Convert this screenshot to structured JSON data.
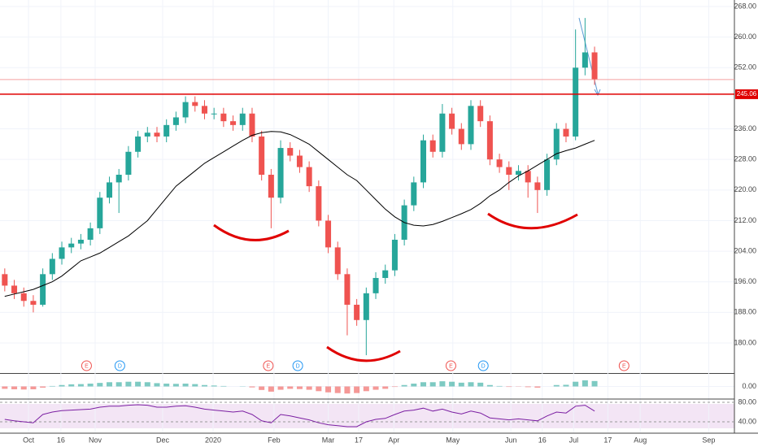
{
  "chart_data": [
    {
      "type": "candlestick",
      "xlim": [
        -0.5,
        76.7
      ],
      "ylim": [
        172.35,
        269.7
      ],
      "yticks": [
        {
          "value": 268,
          "label": "268.00"
        },
        {
          "value": 260,
          "label": "260.00"
        },
        {
          "value": 252,
          "label": "252.00"
        },
        {
          "value": 236,
          "label": "236.00"
        },
        {
          "value": 228,
          "label": "228.00"
        },
        {
          "value": 220,
          "label": "220.00"
        },
        {
          "value": 212,
          "label": "212.00"
        },
        {
          "value": 204,
          "label": "204.00"
        },
        {
          "value": 196,
          "label": "196.00"
        },
        {
          "value": 188,
          "label": "188.00"
        },
        {
          "value": 180,
          "label": "180.00"
        }
      ],
      "xticks": [
        {
          "value": 2.5,
          "label": "Oct"
        },
        {
          "value": 5.9,
          "label": "16"
        },
        {
          "value": 9.5,
          "label": "Nov"
        },
        {
          "value": 16.6,
          "label": "Dec"
        },
        {
          "value": 21.9,
          "label": "2020"
        },
        {
          "value": 28.3,
          "label": "Feb"
        },
        {
          "value": 34.0,
          "label": "Mar"
        },
        {
          "value": 37.2,
          "label": "17"
        },
        {
          "value": 40.9,
          "label": "Apr"
        },
        {
          "value": 47.1,
          "label": "May"
        },
        {
          "value": 53.2,
          "label": "Jun"
        },
        {
          "value": 56.5,
          "label": "16"
        },
        {
          "value": 59.8,
          "label": "Jul"
        },
        {
          "value": 63.4,
          "label": "17"
        },
        {
          "value": 66.8,
          "label": "Aug"
        },
        {
          "value": 74.0,
          "label": "Sep"
        }
      ],
      "grid": true,
      "up_color": "#26a69a",
      "down_color": "#ef5350",
      "ohlc": [
        [
          198,
          199.5,
          193.5,
          195
        ],
        [
          195,
          196.5,
          191.5,
          193
        ],
        [
          193,
          194.5,
          189.5,
          191
        ],
        [
          191,
          192.5,
          188,
          190
        ],
        [
          190,
          199.5,
          189.5,
          198
        ],
        [
          198,
          203.5,
          196.5,
          202
        ],
        [
          202,
          206.5,
          200.5,
          205
        ],
        [
          205,
          207.5,
          203.5,
          206
        ],
        [
          206,
          208.5,
          204.5,
          207
        ],
        [
          207,
          211.5,
          205.5,
          210
        ],
        [
          210,
          219.5,
          208.5,
          218
        ],
        [
          218,
          223.5,
          216.5,
          222
        ],
        [
          222,
          225.5,
          214,
          224
        ],
        [
          224,
          231.5,
          222.5,
          230
        ],
        [
          230,
          235.5,
          228.5,
          234
        ],
        [
          234,
          236.5,
          232.5,
          235
        ],
        [
          235,
          236.5,
          232.5,
          234
        ],
        [
          234,
          238.5,
          232.5,
          237
        ],
        [
          237,
          240.5,
          235.5,
          239
        ],
        [
          239,
          244.5,
          237.5,
          243
        ],
        [
          243,
          244.5,
          240.5,
          242
        ],
        [
          242,
          243.5,
          238.5,
          240
        ],
        [
          240,
          241.5,
          238.5,
          240
        ],
        [
          240,
          241.5,
          236.5,
          238
        ],
        [
          238,
          239.5,
          235.5,
          237
        ],
        [
          237,
          241.5,
          235.5,
          240
        ],
        [
          240,
          241.5,
          232.5,
          234
        ],
        [
          234,
          235.5,
          222.5,
          224
        ],
        [
          224,
          225.5,
          210,
          218
        ],
        [
          218,
          233,
          216.5,
          231
        ],
        [
          231,
          232.5,
          227.5,
          229
        ],
        [
          229,
          230.5,
          224.5,
          226
        ],
        [
          226,
          227.5,
          219.5,
          221
        ],
        [
          221,
          222.5,
          210.5,
          212
        ],
        [
          212,
          213.5,
          203.5,
          205
        ],
        [
          205,
          206.5,
          196.5,
          198
        ],
        [
          198,
          199.5,
          182,
          190
        ],
        [
          190,
          191.5,
          184.5,
          186
        ],
        [
          186,
          194.5,
          176.8,
          193
        ],
        [
          193,
          198.5,
          191.5,
          197
        ],
        [
          197,
          200.5,
          195.5,
          199
        ],
        [
          199,
          208.5,
          197.5,
          207
        ],
        [
          207,
          217.5,
          205.5,
          216
        ],
        [
          216,
          223.5,
          214.5,
          222
        ],
        [
          222,
          234.5,
          220.5,
          233
        ],
        [
          233,
          234.5,
          228.5,
          230
        ],
        [
          230,
          242.5,
          228.5,
          240
        ],
        [
          240,
          241.5,
          234.5,
          236
        ],
        [
          236,
          237.5,
          230.5,
          232
        ],
        [
          232,
          243.5,
          230.5,
          242
        ],
        [
          242,
          243.5,
          236.5,
          238
        ],
        [
          238,
          239.5,
          226.5,
          228
        ],
        [
          228,
          229.5,
          224.5,
          226
        ],
        [
          226,
          227.5,
          220,
          224
        ],
        [
          224,
          226.5,
          222.5,
          225
        ],
        [
          225,
          226.5,
          218,
          222
        ],
        [
          222,
          223.5,
          214,
          220
        ],
        [
          220,
          229.5,
          218.5,
          228
        ],
        [
          228,
          237.5,
          226.5,
          236
        ],
        [
          236,
          237.5,
          232.5,
          234
        ],
        [
          234,
          262,
          233,
          252
        ],
        [
          252,
          265,
          250,
          256
        ],
        [
          256,
          257.5,
          247.5,
          249
        ]
      ],
      "moving_average": [
        192.2,
        192.8,
        193.4,
        194,
        195,
        196,
        197.5,
        199.5,
        201.5,
        202.5,
        203.5,
        205,
        206.5,
        208,
        210,
        212,
        215,
        218,
        221,
        223,
        225,
        227,
        228.5,
        230,
        231.5,
        233,
        234.3,
        235,
        235.3,
        235.2,
        234.5,
        233.3,
        232,
        230,
        228,
        226,
        224,
        222.5,
        220,
        217.5,
        215,
        213,
        211.5,
        210.8,
        210.6,
        211,
        211.8,
        212.8,
        213.8,
        214.9,
        216.5,
        218.5,
        220,
        222,
        223.7,
        225,
        226.5,
        228,
        229.5,
        230.3,
        231,
        232,
        233
      ],
      "ma_color": "#000000",
      "price_line": {
        "value": 245.06,
        "label": "245.06",
        "color": "#e00000"
      },
      "alert_line": 248.9,
      "events": [
        {
          "x": 8.6,
          "label": "E"
        },
        {
          "x": 12.1,
          "label": "D"
        },
        {
          "x": 27.7,
          "label": "E"
        },
        {
          "x": 30.8,
          "label": "D"
        },
        {
          "x": 46.9,
          "label": "E"
        },
        {
          "x": 50.3,
          "label": "D"
        },
        {
          "x": 65.1,
          "label": "E"
        }
      ]
    },
    {
      "type": "bar",
      "ylim": [
        -5,
        5
      ],
      "yticks": [
        {
          "value": 0,
          "label": "0.00"
        }
      ],
      "up_color": "#26a69a",
      "down_color": "#ef5350",
      "values": [
        -1,
        -1.2,
        -1.3,
        -1.2,
        -0.5,
        0.2,
        0.6,
        0.9,
        1,
        1.2,
        1.5,
        1.8,
        1.8,
        2,
        2,
        1.8,
        1.4,
        1.2,
        1.1,
        1.2,
        1,
        0.6,
        0.4,
        0.2,
        0,
        0.1,
        -0.4,
        -1.5,
        -2.2,
        -1.4,
        -1,
        -1.1,
        -1.4,
        -2,
        -2.5,
        -2.8,
        -3,
        -2.8,
        -2,
        -1.4,
        -1,
        -0.2,
        0.6,
        1.2,
        1.8,
        1.8,
        2.2,
        2,
        1.6,
        1.8,
        1.6,
        0.6,
        0.2,
        -0.2,
        -0.1,
        -0.3,
        -0.5,
        0,
        0.6,
        0.7,
        2,
        2.6,
        2.3
      ]
    },
    {
      "type": "line",
      "ylim": [
        18.3,
        85
      ],
      "yticks": [
        {
          "value": 80,
          "label": "80.00"
        },
        {
          "value": 40,
          "label": "40.00"
        }
      ],
      "color": "#7b1fa2",
      "values": [
        45,
        42,
        40,
        38,
        55,
        60,
        63,
        64,
        65,
        66,
        70,
        72,
        72,
        74,
        75,
        74,
        70,
        70,
        72,
        73,
        70,
        66,
        64,
        62,
        60,
        62,
        55,
        42,
        38,
        55,
        52,
        48,
        44,
        38,
        34,
        32,
        30,
        30,
        40,
        45,
        47,
        55,
        62,
        64,
        68,
        62,
        66,
        60,
        56,
        62,
        58,
        48,
        46,
        44,
        46,
        44,
        42,
        52,
        60,
        58,
        72,
        74,
        62
      ]
    }
  ]
}
